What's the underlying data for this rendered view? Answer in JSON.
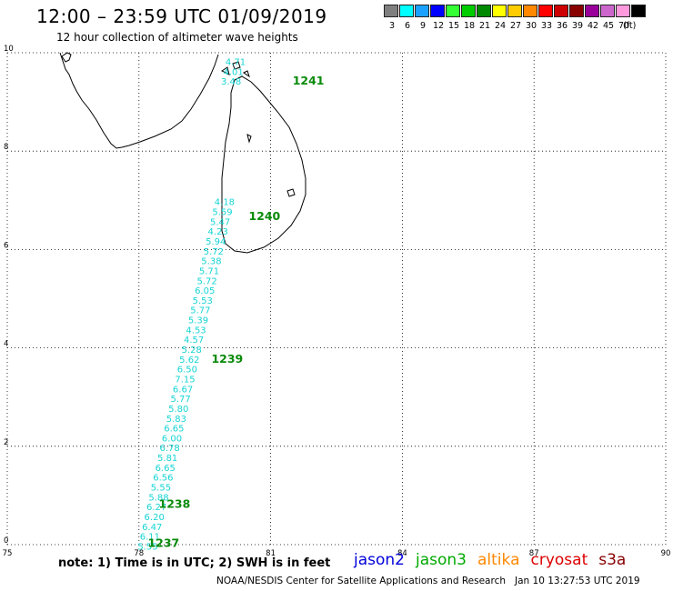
{
  "header": {
    "title": "12:00 – 23:59 UTC 01/09/2019",
    "subtitle": "12 hour collection of altimeter wave heights"
  },
  "legend": {
    "unit": "(ft)",
    "items": [
      {
        "label": "3",
        "color": "#7f7f7f"
      },
      {
        "label": "6",
        "color": "#00ffff"
      },
      {
        "label": "9",
        "color": "#1aa0ff"
      },
      {
        "label": "12",
        "color": "#0000ff"
      },
      {
        "label": "15",
        "color": "#33ff33"
      },
      {
        "label": "18",
        "color": "#00cc00"
      },
      {
        "label": "21",
        "color": "#008800"
      },
      {
        "label": "24",
        "color": "#ffff00"
      },
      {
        "label": "27",
        "color": "#ffcc00"
      },
      {
        "label": "30",
        "color": "#ff8800"
      },
      {
        "label": "33",
        "color": "#ff0000"
      },
      {
        "label": "36",
        "color": "#cc0000"
      },
      {
        "label": "39",
        "color": "#880000"
      },
      {
        "label": "42",
        "color": "#990099"
      },
      {
        "label": "45",
        "color": "#cc66cc"
      },
      {
        "label": "70",
        "color": "#ff99dd"
      },
      {
        "label": "",
        "color": "#000000"
      }
    ]
  },
  "axes": {
    "x_ticks": [
      "75",
      "78",
      "81",
      "84",
      "87",
      "90"
    ],
    "y_ticks": [
      "0",
      "2",
      "4",
      "6",
      "8",
      "10"
    ],
    "x_range": [
      75,
      90
    ],
    "y_range": [
      0,
      10
    ]
  },
  "observations": [
    {
      "lon": 80.2,
      "lat": 9.75,
      "swh": "4.71"
    },
    {
      "lon": 80.15,
      "lat": 9.55,
      "swh": "4.01"
    },
    {
      "lon": 80.1,
      "lat": 9.35,
      "swh": "3.48"
    },
    {
      "lon": 79.95,
      "lat": 6.9,
      "swh": "4.18"
    },
    {
      "lon": 79.9,
      "lat": 6.7,
      "swh": "5.59"
    },
    {
      "lon": 79.85,
      "lat": 6.5,
      "swh": "5.47"
    },
    {
      "lon": 79.8,
      "lat": 6.3,
      "swh": "4.23"
    },
    {
      "lon": 79.75,
      "lat": 6.1,
      "swh": "5.94"
    },
    {
      "lon": 79.7,
      "lat": 5.9,
      "swh": "5.72"
    },
    {
      "lon": 79.65,
      "lat": 5.7,
      "swh": "5.38"
    },
    {
      "lon": 79.6,
      "lat": 5.5,
      "swh": "5.71"
    },
    {
      "lon": 79.55,
      "lat": 5.3,
      "swh": "5.72"
    },
    {
      "lon": 79.5,
      "lat": 5.1,
      "swh": "6.05"
    },
    {
      "lon": 79.45,
      "lat": 4.9,
      "swh": "5.53"
    },
    {
      "lon": 79.4,
      "lat": 4.7,
      "swh": "5.77"
    },
    {
      "lon": 79.35,
      "lat": 4.5,
      "swh": "5.39"
    },
    {
      "lon": 79.3,
      "lat": 4.3,
      "swh": "4.53"
    },
    {
      "lon": 79.25,
      "lat": 4.1,
      "swh": "4.57"
    },
    {
      "lon": 79.2,
      "lat": 3.9,
      "swh": "5.28"
    },
    {
      "lon": 79.15,
      "lat": 3.7,
      "swh": "5.62"
    },
    {
      "lon": 79.1,
      "lat": 3.5,
      "swh": "6.50"
    },
    {
      "lon": 79.05,
      "lat": 3.3,
      "swh": "7.15"
    },
    {
      "lon": 79.0,
      "lat": 3.1,
      "swh": "6.67"
    },
    {
      "lon": 78.95,
      "lat": 2.9,
      "swh": "5.77"
    },
    {
      "lon": 78.9,
      "lat": 2.7,
      "swh": "5.80"
    },
    {
      "lon": 78.85,
      "lat": 2.5,
      "swh": "5.83"
    },
    {
      "lon": 78.8,
      "lat": 2.3,
      "swh": "6.65"
    },
    {
      "lon": 78.75,
      "lat": 2.1,
      "swh": "6.00"
    },
    {
      "lon": 78.7,
      "lat": 1.9,
      "swh": "6.78"
    },
    {
      "lon": 78.65,
      "lat": 1.7,
      "swh": "5.81"
    },
    {
      "lon": 78.6,
      "lat": 1.5,
      "swh": "6.65"
    },
    {
      "lon": 78.55,
      "lat": 1.3,
      "swh": "6.56"
    },
    {
      "lon": 78.5,
      "lat": 1.1,
      "swh": "5.55"
    },
    {
      "lon": 78.45,
      "lat": 0.9,
      "swh": "5.88"
    },
    {
      "lon": 78.4,
      "lat": 0.7,
      "swh": "6.27"
    },
    {
      "lon": 78.35,
      "lat": 0.5,
      "swh": "6.20"
    },
    {
      "lon": 78.3,
      "lat": 0.3,
      "swh": "6.47"
    },
    {
      "lon": 78.25,
      "lat": 0.1,
      "swh": "6.11"
    },
    {
      "lon": 78.2,
      "lat": -0.1,
      "swh": "5.55"
    }
  ],
  "passes": [
    {
      "lon": 81.5,
      "lat": 9.35,
      "label": "1241"
    },
    {
      "lon": 80.5,
      "lat": 6.6,
      "label": "1240"
    },
    {
      "lon": 79.65,
      "lat": 3.7,
      "label": "1239"
    },
    {
      "lon": 78.45,
      "lat": 0.75,
      "label": "1238"
    },
    {
      "lon": 78.2,
      "lat": -0.05,
      "label": "1237"
    }
  ],
  "footer": {
    "note": "note: 1) Time is in UTC; 2) SWH is in feet",
    "satellites": [
      {
        "name": "jason2",
        "color": "#0000dd"
      },
      {
        "name": "jason3",
        "color": "#00aa00"
      },
      {
        "name": "altika",
        "color": "#ff8800"
      },
      {
        "name": "cryosat",
        "color": "#dd0000"
      },
      {
        "name": "s3a",
        "color": "#880000"
      }
    ],
    "credit": "NOAA/NESDIS Center for Satellite Applications and Research   Jan 10 13:27:53 UTC 2019"
  }
}
